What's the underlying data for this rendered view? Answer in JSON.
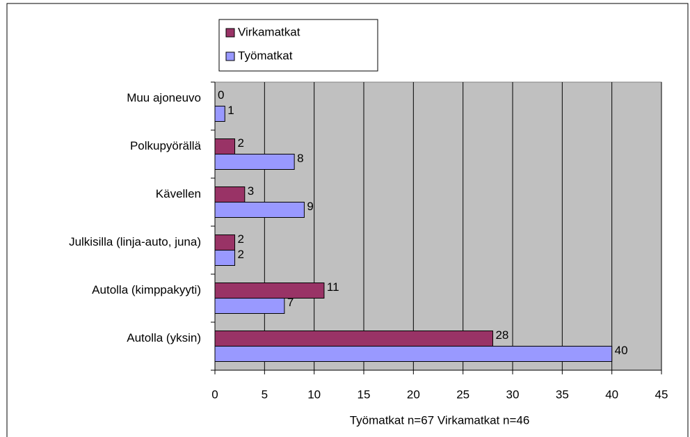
{
  "chart_data": {
    "type": "bar",
    "orientation": "horizontal",
    "x_label": "Työmatkat n=67   Virkamatkat n=46",
    "categories": [
      "Muu ajoneuvo",
      "Polkupyörällä",
      "Kävellen",
      "Julkisilla (linja-auto, juna)",
      "Autolla (kimppakyyti)",
      "Autolla (yksin)"
    ],
    "series": [
      {
        "name": "Virkamatkat",
        "color": "#993366",
        "values": [
          0,
          2,
          3,
          2,
          11,
          28
        ]
      },
      {
        "name": "Työmatkat",
        "color": "#9999ff",
        "values": [
          1,
          8,
          9,
          2,
          7,
          40
        ]
      }
    ],
    "xlim": [
      0,
      45
    ],
    "xticks": [
      0,
      5,
      10,
      15,
      20,
      25,
      30,
      35,
      40,
      45
    ],
    "grid": true,
    "plot_background": "#c0c0c0",
    "legend": "top"
  }
}
